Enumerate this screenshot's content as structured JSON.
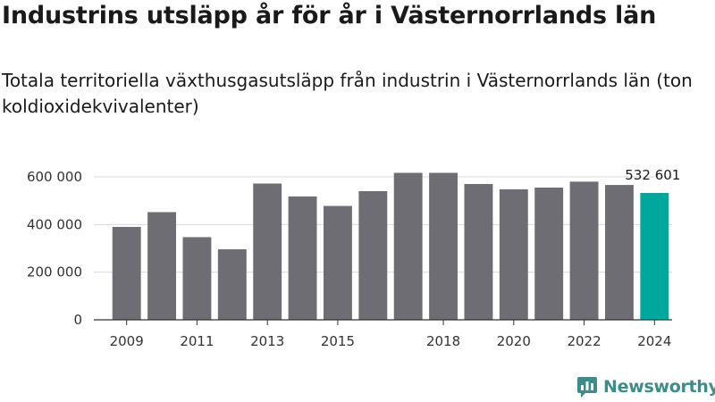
{
  "chart_data": {
    "type": "bar",
    "title": "Industrins utsläpp år för år i Västernorrlands län",
    "subtitle": "Totala territoriella växthusgasutsläpp från industrin i Västernorrlands län (ton koldioxidekvivalenter)",
    "categories": [
      "2009",
      "2010",
      "2011",
      "2012",
      "2013",
      "2014",
      "2015",
      "2016",
      "2017",
      "2018",
      "2019",
      "2020",
      "2021",
      "2022",
      "2023",
      "2024"
    ],
    "values": [
      390000,
      452000,
      347000,
      296000,
      572000,
      518000,
      478000,
      540000,
      617000,
      617000,
      570000,
      548000,
      555000,
      580000,
      566000,
      532601
    ],
    "x_tick_labels": [
      "2009",
      "2011",
      "2013",
      "2015",
      "2018",
      "2020",
      "2022",
      "2024"
    ],
    "y_ticks": [
      0,
      200000,
      400000,
      600000
    ],
    "y_tick_labels": [
      "0",
      "200 000",
      "400 000",
      "600 000"
    ],
    "ylim": [
      0,
      660000
    ],
    "highlight_index": 15,
    "highlight_label": "532 601",
    "colors": {
      "bar": "#6e6d73",
      "highlight": "#00a79d",
      "grid": "#d9d9d9",
      "axis": "#333333"
    },
    "grid": true,
    "legend": "none"
  },
  "brand": {
    "name": "Newsworthy",
    "color": "#3d8c8a",
    "icon": "newsworthy-bar-logo-icon"
  }
}
